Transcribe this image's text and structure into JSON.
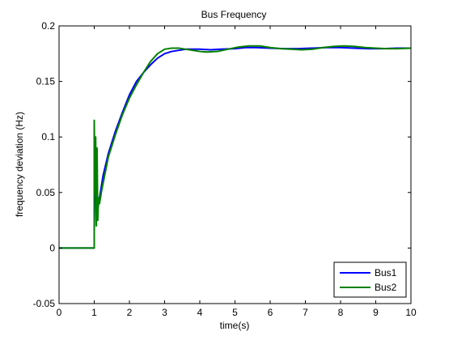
{
  "chart_data": {
    "type": "line",
    "title": "Bus Frequency",
    "xlabel": "time(s)",
    "ylabel": "frequency deviation (Hz)",
    "xlim": [
      0,
      10
    ],
    "ylim": [
      -0.05,
      0.2
    ],
    "xticks": [
      0,
      1,
      2,
      3,
      4,
      5,
      6,
      7,
      8,
      9,
      10
    ],
    "yticks": [
      -0.05,
      0,
      0.05,
      0.1,
      0.15,
      0.2
    ],
    "xtick_labels": [
      "0",
      "1",
      "2",
      "3",
      "4",
      "5",
      "6",
      "7",
      "8",
      "9",
      "10"
    ],
    "ytick_labels": [
      "-0.05",
      "0",
      "0.05",
      "0.1",
      "0.15",
      "0.2"
    ],
    "grid": false,
    "legend": {
      "position": "bottom-right",
      "entries": [
        "Bus1",
        "Bus2"
      ]
    },
    "series": [
      {
        "name": "Bus1",
        "color": "#0000ff",
        "x": [
          0,
          1.0,
          1.0,
          1.03,
          1.06,
          1.1,
          1.15,
          1.25,
          1.4,
          1.6,
          1.8,
          2.0,
          2.2,
          2.4,
          2.6,
          2.8,
          3.0,
          3.2,
          3.4,
          3.6,
          3.8,
          4.0,
          4.3,
          4.6,
          5.0,
          5.3,
          5.6,
          6.0,
          6.4,
          6.8,
          7.2,
          7.6,
          8.0,
          8.4,
          8.8,
          9.2,
          9.6,
          10.0
        ],
        "y": [
          0,
          0,
          0.015,
          0.085,
          0.045,
          0.035,
          0.045,
          0.065,
          0.085,
          0.105,
          0.122,
          0.138,
          0.15,
          0.158,
          0.165,
          0.171,
          0.175,
          0.177,
          0.178,
          0.179,
          0.179,
          0.179,
          0.1785,
          0.179,
          0.1795,
          0.1805,
          0.1805,
          0.18,
          0.1795,
          0.1795,
          0.18,
          0.1805,
          0.1805,
          0.18,
          0.1795,
          0.1795,
          0.18,
          0.18
        ]
      },
      {
        "name": "Bus2",
        "color": "#008000",
        "x": [
          0,
          1.0,
          1.0,
          1.02,
          1.04,
          1.06,
          1.08,
          1.1,
          1.12,
          1.15,
          1.2,
          1.3,
          1.4,
          1.6,
          1.8,
          2.0,
          2.2,
          2.4,
          2.6,
          2.8,
          3.0,
          3.2,
          3.4,
          3.6,
          3.8,
          4.0,
          4.2,
          4.5,
          4.8,
          5.1,
          5.4,
          5.7,
          6.0,
          6.3,
          6.6,
          6.9,
          7.2,
          7.5,
          7.8,
          8.1,
          8.4,
          8.7,
          9.0,
          9.3,
          9.6,
          10.0
        ],
        "y": [
          0,
          0,
          0.115,
          0.05,
          0.1,
          0.02,
          0.09,
          0.025,
          0.045,
          0.04,
          0.05,
          0.066,
          0.082,
          0.102,
          0.12,
          0.135,
          0.147,
          0.158,
          0.168,
          0.175,
          0.179,
          0.18,
          0.18,
          0.179,
          0.178,
          0.177,
          0.1765,
          0.177,
          0.179,
          0.181,
          0.182,
          0.182,
          0.1805,
          0.1795,
          0.179,
          0.1785,
          0.179,
          0.1805,
          0.1815,
          0.182,
          0.1815,
          0.1805,
          0.18,
          0.1795,
          0.1795,
          0.18
        ]
      }
    ]
  }
}
